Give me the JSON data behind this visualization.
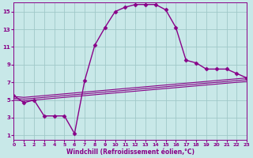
{
  "xlabel": "Windchill (Refroidissement éolien,°C)",
  "background_color": "#c8e8e8",
  "grid_color": "#a0c8c8",
  "line_color": "#880088",
  "x_ticks": [
    0,
    1,
    2,
    3,
    4,
    5,
    6,
    7,
    8,
    9,
    10,
    11,
    12,
    13,
    14,
    15,
    16,
    17,
    18,
    19,
    20,
    21,
    22,
    23
  ],
  "y_ticks": [
    1,
    3,
    5,
    7,
    9,
    11,
    13,
    15
  ],
  "xlim": [
    0,
    23
  ],
  "ylim": [
    0.5,
    16.0
  ],
  "series_main": {
    "x": [
      0,
      1,
      2,
      3,
      4,
      5,
      6,
      7,
      8,
      9,
      10,
      11,
      12,
      13,
      14,
      15,
      16,
      17,
      18,
      19,
      20,
      21,
      22,
      23
    ],
    "y": [
      5.5,
      4.7,
      5.0,
      3.2,
      3.2,
      3.2,
      1.2,
      7.2,
      11.2,
      13.2,
      15.0,
      15.5,
      15.8,
      15.8,
      15.8,
      15.2,
      13.2,
      9.5,
      9.2,
      8.5,
      8.5,
      8.5,
      8.0,
      7.5
    ],
    "color": "#880088",
    "marker": "D",
    "markersize": 2.5,
    "linewidth": 1.0
  },
  "series_flat": [
    {
      "x": [
        0,
        1,
        2,
        3,
        4,
        5,
        6,
        7,
        8,
        9,
        10,
        11,
        12,
        13,
        14,
        15,
        16,
        17,
        18,
        19,
        20,
        21,
        22,
        23
      ],
      "y": [
        5.4,
        5.3,
        5.4,
        5.5,
        5.6,
        5.7,
        5.8,
        5.9,
        6.0,
        6.1,
        6.2,
        6.3,
        6.4,
        6.5,
        6.6,
        6.7,
        6.8,
        6.9,
        7.0,
        7.1,
        7.2,
        7.3,
        7.4,
        7.5
      ],
      "color": "#880088",
      "linewidth": 0.8
    },
    {
      "x": [
        0,
        1,
        2,
        3,
        4,
        5,
        6,
        7,
        8,
        9,
        10,
        11,
        12,
        13,
        14,
        15,
        16,
        17,
        18,
        19,
        20,
        21,
        22,
        23
      ],
      "y": [
        5.2,
        5.1,
        5.2,
        5.3,
        5.4,
        5.5,
        5.6,
        5.7,
        5.8,
        5.9,
        6.0,
        6.1,
        6.2,
        6.3,
        6.4,
        6.5,
        6.6,
        6.7,
        6.8,
        6.9,
        7.0,
        7.1,
        7.2,
        7.3
      ],
      "color": "#880088",
      "linewidth": 0.8
    },
    {
      "x": [
        0,
        1,
        2,
        3,
        4,
        5,
        6,
        7,
        8,
        9,
        10,
        11,
        12,
        13,
        14,
        15,
        16,
        17,
        18,
        19,
        20,
        21,
        22,
        23
      ],
      "y": [
        5.0,
        4.9,
        5.0,
        5.1,
        5.2,
        5.3,
        5.4,
        5.5,
        5.6,
        5.7,
        5.8,
        5.9,
        6.0,
        6.1,
        6.2,
        6.3,
        6.4,
        6.5,
        6.6,
        6.7,
        6.8,
        6.9,
        7.0,
        7.1
      ],
      "color": "#880088",
      "linewidth": 0.8
    }
  ],
  "xlabel_fontsize": 5.5,
  "tick_fontsize": 5.0
}
